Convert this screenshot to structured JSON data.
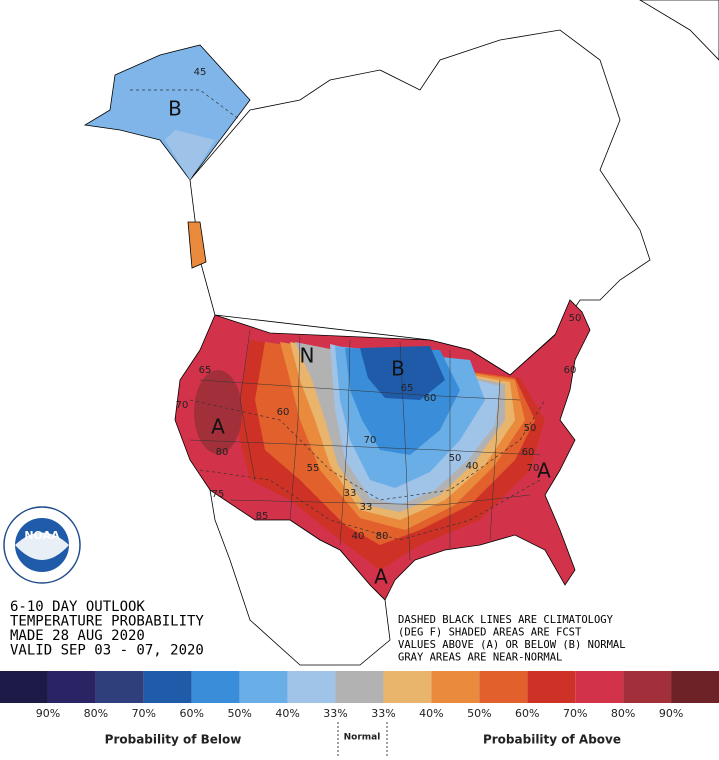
{
  "map": {
    "labels": [
      "B",
      "45",
      "N",
      "B",
      "65",
      "60",
      "70",
      "A",
      "65",
      "70",
      "80",
      "60",
      "55",
      "75",
      "85",
      "33",
      "33",
      "40",
      "80",
      "50",
      "40",
      "50",
      "60",
      "70",
      "A",
      "60",
      "50",
      "A"
    ]
  },
  "info": {
    "lines": [
      "6-10 DAY OUTLOOK",
      "TEMPERATURE PROBABILITY",
      "MADE  28 AUG 2020",
      "VALID  SEP 03 - 07, 2020"
    ]
  },
  "notes": {
    "lines": [
      "DASHED BLACK LINES ARE CLIMATOLOGY",
      "(DEG F) SHADED AREAS ARE FCST",
      "VALUES ABOVE (A) OR BELOW (B) NORMAL",
      "GRAY AREAS ARE NEAR-NORMAL"
    ]
  },
  "logo": {
    "text": "NOAA"
  },
  "legend": {
    "colors": [
      "#1d1a47",
      "#2a2464",
      "#2e3f7c",
      "#1f5ba9",
      "#3a8ed9",
      "#6aaee8",
      "#a0c3e8",
      "#b2b2b2",
      "#e9b56c",
      "#ea8a3c",
      "#e1602c",
      "#ce3226",
      "#d3334a",
      "#a2303a",
      "#6d2227"
    ],
    "labels": [
      "90%",
      "80%",
      "70%",
      "60%",
      "50%",
      "40%",
      "33%",
      "33%",
      "40%",
      "50%",
      "60%",
      "70%",
      "80%",
      "90%"
    ],
    "below": "Probability of Below",
    "normal": "Normal",
    "above": "Probability of Above"
  }
}
